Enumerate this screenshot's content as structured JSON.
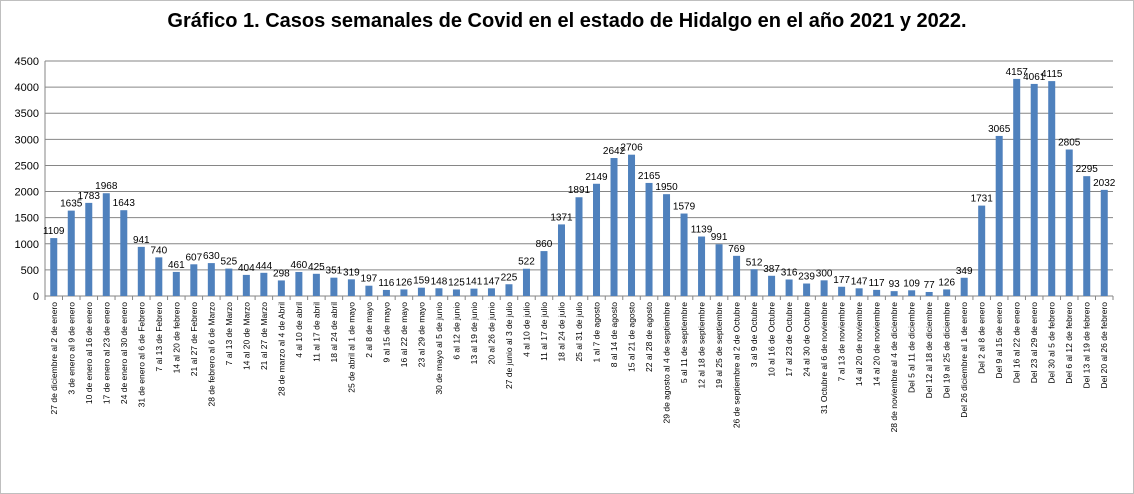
{
  "chart_data": {
    "type": "bar",
    "title": "Gráfico 1. Casos semanales de Covid en el estado de Hidalgo en el año 2021 y 2022.",
    "xlabel": "",
    "ylabel": "",
    "ylim": [
      0,
      4500
    ],
    "yticks": [
      0,
      500,
      1000,
      1500,
      2000,
      2500,
      3000,
      3500,
      4000,
      4500
    ],
    "grid": true,
    "bar_color": "#4f81bd",
    "categories": [
      "27 de diciembre al 2 de enero",
      "3 de enero al 9 de enero",
      "10 de enero al 16 de enero",
      "17 de enero al 23 de enero",
      "24 de enero al 30 de enero",
      "31 de enero al 6 de Febrero",
      "7 al 13 de Febrero",
      "14 al 20 de febrero",
      "21 al 27 de Febrero",
      "28 de febrero al 6 de Marzo",
      "7 al 13 de Marzo",
      "14 al 20 de Marzo",
      "21 al 27 de Marzo",
      "28 de marzo al 4 de Abril",
      "4 al 10 de abril",
      "11 al 17 de abril",
      "18 al 24 de abril",
      "25 de abril al 1 de mayo",
      "2 al 8 de mayo",
      "9 al 15 de mayo",
      "16 al 22 de mayo",
      "23 al 29 de mayo",
      "30 de mayo al 5 de junio",
      "6 al 12 de junio",
      "13 al 19 de junio",
      "20 al 26 de junio",
      "27 de junio al 3 de julio",
      "4 al 10 de julio",
      "11 al 17 de julio",
      "18 al 24 de julio",
      "25 al 31 de julio",
      "1 al 7 de agosto",
      "8 al 14 de agosto",
      "15 al 21 de agosto",
      "22 al 28 de agosto",
      "29 de agosto al 4 de septiembre",
      "5 al 11 de septiembre",
      "12 al 18 de septiembre",
      "19 al 25 de septiembre",
      "26 de septiembre al 2 de Octubre",
      "3 al 9 de Octubre",
      "10 al 16 de Octubre",
      "17 al 23 de Octubre",
      "24 al 30 de Octubre",
      "31 Octubre al 6 de noviembre",
      "7 al 13 de noviembre",
      "14 al 20 de noviembre",
      "14 al 20 de noviembre",
      "28 de noviembre al 4 de diciembre",
      "Del 5 al 11 de diciembre",
      "Del 12 al 18 de diciembre",
      "Del 19 al 25 de diciembre",
      "Del 26 diciembre al 1 de enero",
      "Del 2 al 8 de enero",
      "Del 9 al 15 de enero",
      "Del 16 al 22 de enero",
      "Del 23 al 29 de enero",
      "Del 30 al 5 de febrero",
      "Del 6 al 12 de febrero",
      "Del 13 al 19 de febrero",
      "Del 20 al 26 de febrero"
    ],
    "values": [
      1109,
      1635,
      1783,
      1968,
      1643,
      941,
      740,
      461,
      607,
      630,
      525,
      404,
      444,
      298,
      460,
      425,
      351,
      319,
      197,
      116,
      126,
      159,
      148,
      125,
      141,
      147,
      225,
      522,
      860,
      1371,
      1891,
      2149,
      2642,
      2706,
      2165,
      1950,
      1579,
      1139,
      991,
      769,
      512,
      387,
      316,
      239,
      300,
      177,
      147,
      117,
      93,
      109,
      77,
      126,
      349,
      1731,
      3065,
      4157,
      4061,
      4115,
      2805,
      2295,
      2032
    ]
  }
}
